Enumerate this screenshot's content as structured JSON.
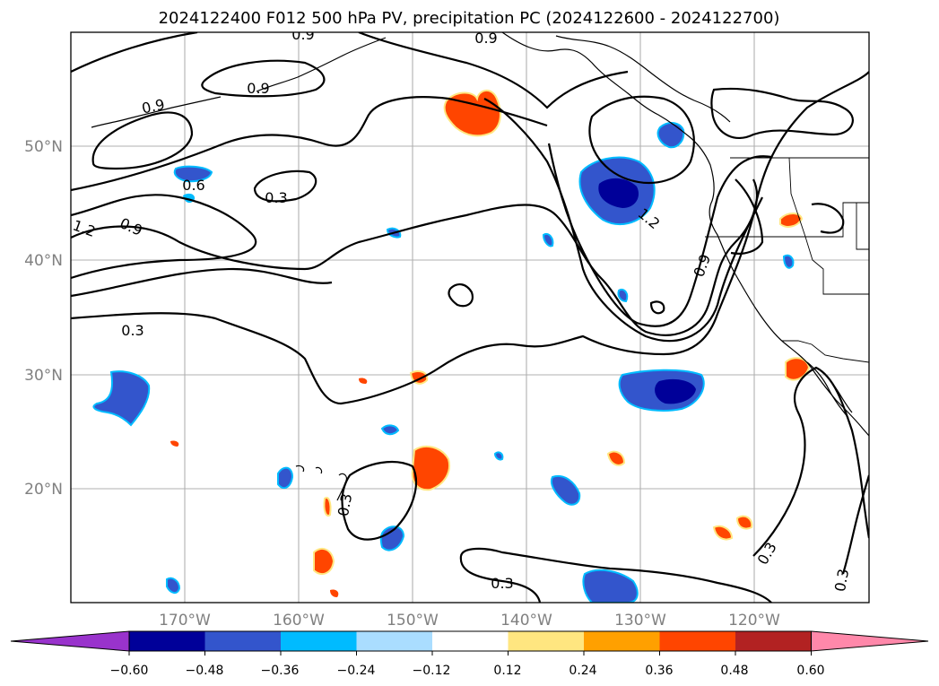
{
  "title": "2024122400 F012 500 hPa PV, precipitation PC (2024122600 - 2024122700)",
  "map": {
    "lat_labels": [
      "50°N",
      "40°N",
      "30°N",
      "20°N"
    ],
    "lon_labels": [
      "170°W",
      "160°W",
      "150°W",
      "140°W",
      "130°W",
      "120°W"
    ],
    "contour_labels": [
      "0.9",
      "0.9",
      "0.9",
      "0.6",
      "0.3",
      "1.2",
      "0.9",
      "0.3",
      "1.2",
      "0.9",
      "0.3",
      "0.3",
      "0.3",
      "0.9",
      "0.3"
    ]
  },
  "colorbar": {
    "tick_labels": [
      "−0.60",
      "−0.48",
      "−0.36",
      "−0.24",
      "−0.12",
      "0.12",
      "0.24",
      "0.36",
      "0.48",
      "0.60"
    ],
    "colors": [
      "#9933cc",
      "#000099",
      "#3355cc",
      "#00bbff",
      "#aaddff",
      "#ffffff",
      "#ffe680",
      "#ffa000",
      "#ff4500",
      "#b22222",
      "#ff88aa"
    ]
  }
}
